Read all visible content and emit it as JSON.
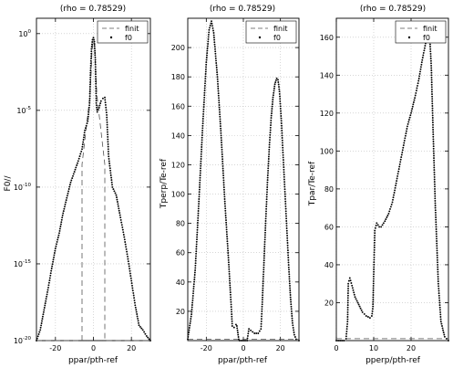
{
  "chart_data": [
    {
      "type": "scatter",
      "title": "(rho = 0.78529)",
      "xlabel": "ppar/pth-ref",
      "ylabel": "F0//",
      "xlim": [
        -30,
        30
      ],
      "ylim": [
        1e-20,
        10
      ],
      "yscale": "log",
      "xticks": [
        "-20",
        "0",
        "20"
      ],
      "yticks": [
        {
          "value": 1,
          "base": "10",
          "exp": "0"
        },
        {
          "value": 1e-05,
          "base": "10",
          "exp": "-5"
        },
        {
          "value": 1e-10,
          "base": "10",
          "exp": "-10"
        },
        {
          "value": 1e-15,
          "base": "10",
          "exp": "-15"
        },
        {
          "value": 1e-20,
          "base": "10",
          "exp": "-20"
        }
      ],
      "grid": true,
      "legend": "top-right",
      "series": [
        {
          "name": "finit",
          "style": "dashed",
          "x": [
            -30,
            -6,
            -6,
            -1.8,
            -1.2,
            -0.8,
            -0.4,
            0,
            0.4,
            0.8,
            1.2,
            1.8,
            6,
            6,
            30
          ],
          "y": [
            1e-20,
            1e-20,
            3e-09,
            0.0001,
            0.003,
            0.05,
            0.2,
            0.35,
            0.2,
            0.05,
            0.003,
            0.0001,
            3e-09,
            1e-20,
            1e-20
          ]
        },
        {
          "name": "f0",
          "style": "dots",
          "x": [
            -30,
            -28,
            -26,
            -24,
            -22,
            -20,
            -18,
            -16,
            -14,
            -12,
            -10,
            -8,
            -6,
            -4.5,
            -3,
            -2,
            -1.5,
            -1,
            -0.5,
            0,
            0.5,
            1,
            1.5,
            2,
            3,
            4,
            5,
            6,
            7,
            8,
            10,
            12,
            14,
            16,
            18,
            20,
            22,
            24,
            26,
            28,
            30
          ],
          "y": [
            1e-20,
            5e-20,
            1e-18,
            2e-17,
            5e-16,
            1e-14,
            1e-13,
            2e-12,
            2e-11,
            2e-10,
            1e-09,
            5e-09,
            3e-08,
            5e-07,
            2e-06,
            3e-05,
            0.004,
            0.1,
            0.4,
            0.55,
            0.3,
            0.02,
            3e-05,
            8e-06,
            1.5e-05,
            4e-05,
            6e-05,
            7e-05,
            5e-06,
            1e-08,
            1e-10,
            3e-11,
            1.5e-12,
            8e-14,
            3e-15,
            8e-17,
            2e-18,
            1e-19,
            5e-20,
            2e-20,
            1e-20
          ]
        }
      ]
    },
    {
      "type": "scatter",
      "title": "(rho = 0.78529)",
      "xlabel": "ppar/pth-ref",
      "ylabel": "Tperp/Te-ref",
      "xlim": [
        -30,
        30
      ],
      "ylim": [
        0,
        220
      ],
      "xticks": [
        -20,
        0,
        20
      ],
      "yticks": [
        20,
        40,
        60,
        80,
        100,
        120,
        140,
        160,
        180,
        200
      ],
      "grid": true,
      "legend": "top-right",
      "series": [
        {
          "name": "finit",
          "style": "dashed",
          "x": [
            -30,
            30
          ],
          "y": [
            1,
            1
          ]
        },
        {
          "name": "f0",
          "style": "dots",
          "x": [
            -30,
            -28,
            -26,
            -24,
            -22,
            -20,
            -18.5,
            -17.2,
            -16,
            -14,
            -12,
            -10,
            -8,
            -7,
            -6.3,
            -6,
            -5,
            -4,
            -3.5,
            -2.5,
            -2,
            0,
            2,
            3,
            4,
            6,
            8,
            9.5,
            10,
            11,
            12,
            13,
            14,
            15,
            16,
            17,
            18,
            18.7,
            19.5,
            20.5,
            21.5,
            22.5,
            23.5,
            24.5,
            25.5,
            26.5,
            27.5,
            28.5,
            30
          ],
          "y": [
            1,
            18,
            48,
            95,
            145,
            190,
            212,
            218,
            210,
            180,
            140,
            95,
            55,
            33,
            18,
            10,
            9,
            11,
            10,
            1,
            0,
            0,
            0,
            8,
            7,
            5,
            5,
            8,
            20,
            50,
            80,
            108,
            132,
            152,
            166,
            175,
            179,
            178,
            170,
            150,
            125,
            100,
            75,
            50,
            28,
            12,
            4,
            1,
            0
          ]
        }
      ]
    },
    {
      "type": "scatter",
      "title": "(rho = 0.78529)",
      "xlabel": "pperp/pth-ref",
      "ylabel": "Tpar/Te-ref",
      "xlim": [
        0,
        30
      ],
      "ylim": [
        0,
        170
      ],
      "xticks": [
        0,
        10,
        20
      ],
      "yticks": [
        20,
        40,
        60,
        80,
        100,
        120,
        140,
        160
      ],
      "grid": true,
      "legend": "top-right",
      "series": [
        {
          "name": "finit",
          "style": "dashed",
          "x": [
            0,
            30
          ],
          "y": [
            1,
            1
          ]
        },
        {
          "name": "f0",
          "style": "dots",
          "x": [
            0,
            1,
            2,
            2.6,
            3,
            3.2,
            3.6,
            4.2,
            5,
            6,
            7,
            8,
            9,
            9.5,
            9.8,
            10,
            10.3,
            10.8,
            11.5,
            12,
            13,
            14,
            15,
            16,
            17,
            18,
            19,
            20,
            21,
            22,
            23,
            24,
            24.6,
            25,
            25.4,
            25.9,
            26.5,
            27.3,
            28,
            29,
            30
          ],
          "y": [
            0,
            0,
            0,
            1,
            10,
            30,
            33,
            29,
            23,
            19,
            15,
            13,
            12,
            13,
            18,
            35,
            58,
            62,
            60,
            60,
            63,
            67,
            73,
            83,
            93,
            103,
            113,
            120,
            128,
            137,
            148,
            158,
            163,
            160,
            145,
            110,
            70,
            30,
            10,
            2,
            0
          ]
        }
      ]
    }
  ]
}
